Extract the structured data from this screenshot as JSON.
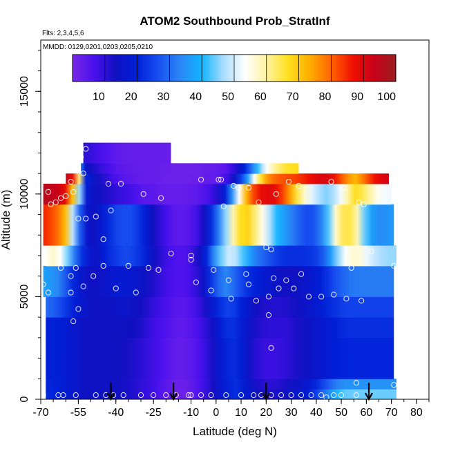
{
  "chart_data": {
    "type": "heatmap",
    "title": "ATOM2 Southbound Prob_StratInf",
    "flights_label": "Flts: 2,3,4,5,6",
    "dates_label": "MMDD: 0129,0201,0203,0205,0210",
    "xlabel": "Latitude (deg N)",
    "ylabel": "Altitude (m)",
    "xlim": [
      -70,
      85
    ],
    "ylim": [
      0,
      17500
    ],
    "x_ticks": [
      "-70",
      "-55",
      "-40",
      "-25",
      "-10",
      "0",
      "10",
      "20",
      "30",
      "40",
      "50",
      "60",
      "70",
      "80"
    ],
    "x_tick_values": [
      -70,
      -55,
      -40,
      -25,
      -10,
      0,
      10,
      20,
      30,
      40,
      50,
      60,
      70,
      80
    ],
    "x_minor_step": 5,
    "y_ticks": [
      "0",
      "5000",
      "10000",
      "15000"
    ],
    "y_tick_values": [
      0,
      5000,
      10000,
      15000
    ],
    "y_minor_step": 1000,
    "colorbar": {
      "ticks": [
        "10",
        "20",
        "30",
        "40",
        "50",
        "60",
        "70",
        "80",
        "90",
        "100"
      ],
      "tick_values": [
        10,
        20,
        30,
        40,
        50,
        60,
        70,
        80,
        90,
        100
      ],
      "range": [
        0,
        100
      ],
      "colors": [
        "#7a28e6",
        "#4a10ee",
        "#1010c0",
        "#0020d8",
        "#1850f0",
        "#2a86f4",
        "#10b4ff",
        "#a8dcff",
        "#ffffff",
        "#fff2a0",
        "#ffe020",
        "#ffae00",
        "#ff6400",
        "#f01000",
        "#c8001a",
        "#9a1e1e"
      ]
    },
    "arrow_latitudes": [
      -42,
      -17,
      20,
      61
    ],
    "curtain": {
      "bands": [
        {
          "y0": 0,
          "y1": 500,
          "x0": -68,
          "x1": 72
        },
        {
          "y0": 500,
          "y1": 1000,
          "x0": -68,
          "x1": 72
        },
        {
          "y0": 1000,
          "y1": 3000,
          "x0": -68,
          "x1": 71
        },
        {
          "y0": 3000,
          "y1": 4000,
          "x0": -68,
          "x1": 71
        },
        {
          "y0": 4000,
          "y1": 5000,
          "x0": -68,
          "x1": 71
        },
        {
          "y0": 5000,
          "y1": 6500,
          "x0": -69,
          "x1": 71
        },
        {
          "y0": 6500,
          "y1": 7500,
          "x0": -68,
          "x1": 72
        },
        {
          "y0": 7500,
          "y1": 9500,
          "x0": -69,
          "x1": 71
        },
        {
          "y0": 9500,
          "y1": 10500,
          "x0": -69,
          "x1": 70
        },
        {
          "y0": 10500,
          "y1": 11000,
          "x0": -60,
          "x1": 69
        },
        {
          "y0": 11000,
          "y1": 11500,
          "x0": -54,
          "x1": 33
        },
        {
          "y0": 11500,
          "y1": 12500,
          "x0": -53,
          "x1": -18
        }
      ],
      "profile_lat": [
        -70,
        -64,
        -60,
        -56,
        -52,
        -48,
        -44,
        -40,
        -35,
        -30,
        -25,
        -20,
        -16,
        -12,
        -8,
        -4,
        0,
        4,
        8,
        12,
        16,
        20,
        24,
        28,
        32,
        36,
        40,
        44,
        48,
        52,
        56,
        60,
        64,
        68,
        72
      ],
      "profiles": [
        {
          "alt": 11700,
          "values": [
            10,
            10,
            20,
            14,
            10,
            8,
            6,
            4,
            3,
            3,
            3,
            3,
            2,
            2,
            2,
            3,
            3,
            4,
            8,
            14,
            22,
            32,
            42,
            50,
            50,
            50,
            50,
            50,
            50,
            50,
            50,
            50,
            50,
            50,
            50
          ]
        },
        {
          "alt": 10800,
          "values": [
            99,
            98,
            95,
            85,
            20,
            14,
            10,
            6,
            4,
            3,
            3,
            2,
            2,
            2,
            2,
            3,
            3,
            6,
            14,
            30,
            56,
            74,
            80,
            82,
            84,
            88,
            92,
            94,
            88,
            78,
            72,
            82,
            90,
            94,
            95
          ]
        },
        {
          "alt": 10000,
          "values": [
            96,
            94,
            88,
            62,
            18,
            14,
            12,
            10,
            8,
            5,
            4,
            3,
            3,
            3,
            4,
            6,
            10,
            20,
            45,
            72,
            86,
            90,
            88,
            80,
            66,
            55,
            48,
            45,
            48,
            58,
            68,
            62,
            55,
            52,
            52
          ]
        },
        {
          "alt": 9000,
          "values": [
            92,
            88,
            80,
            42,
            16,
            14,
            18,
            22,
            24,
            18,
            10,
            6,
            4,
            4,
            6,
            12,
            22,
            40,
            62,
            78,
            72,
            62,
            52,
            45,
            38,
            32,
            30,
            42,
            62,
            72,
            65,
            45,
            38,
            40,
            42
          ]
        },
        {
          "alt": 8000,
          "values": [
            80,
            74,
            62,
            32,
            16,
            14,
            22,
            28,
            30,
            26,
            16,
            8,
            4,
            4,
            8,
            18,
            34,
            52,
            66,
            62,
            50,
            40,
            30,
            26,
            22,
            20,
            24,
            36,
            54,
            62,
            56,
            36,
            30,
            30,
            32
          ]
        },
        {
          "alt": 7000,
          "values": [
            52,
            58,
            48,
            30,
            18,
            14,
            20,
            24,
            26,
            22,
            14,
            8,
            6,
            6,
            10,
            20,
            38,
            50,
            48,
            40,
            32,
            28,
            24,
            22,
            22,
            22,
            24,
            30,
            44,
            54,
            58,
            52,
            48,
            46,
            46
          ]
        },
        {
          "alt": 6000,
          "values": [
            38,
            36,
            28,
            18,
            14,
            14,
            16,
            18,
            18,
            16,
            12,
            8,
            6,
            6,
            10,
            18,
            30,
            36,
            30,
            24,
            22,
            18,
            16,
            14,
            14,
            16,
            18,
            22,
            28,
            32,
            34,
            34,
            34,
            34,
            34
          ]
        },
        {
          "alt": 5000,
          "values": [
            36,
            32,
            26,
            20,
            16,
            14,
            14,
            16,
            16,
            14,
            10,
            7,
            5,
            5,
            8,
            14,
            22,
            26,
            24,
            18,
            14,
            12,
            12,
            12,
            14,
            16,
            18,
            22,
            24,
            26,
            26,
            26,
            26,
            26,
            26
          ]
        },
        {
          "alt": 3500,
          "values": [
            20,
            20,
            18,
            16,
            14,
            14,
            14,
            14,
            14,
            12,
            8,
            6,
            4,
            4,
            6,
            10,
            16,
            22,
            22,
            16,
            12,
            10,
            10,
            10,
            12,
            14,
            16,
            18,
            20,
            22,
            22,
            22,
            22,
            22,
            22
          ]
        },
        {
          "alt": 1500,
          "values": [
            20,
            20,
            18,
            16,
            14,
            14,
            14,
            14,
            12,
            10,
            8,
            5,
            3,
            3,
            5,
            9,
            14,
            20,
            22,
            16,
            10,
            8,
            8,
            10,
            12,
            14,
            16,
            18,
            20,
            20,
            20,
            20,
            20,
            20,
            20
          ]
        },
        {
          "alt": 300,
          "values": [
            22,
            20,
            18,
            16,
            14,
            14,
            14,
            14,
            12,
            10,
            8,
            4,
            2,
            2,
            5,
            9,
            14,
            20,
            22,
            18,
            14,
            12,
            12,
            14,
            16,
            18,
            24,
            32,
            40,
            44,
            44,
            44,
            44,
            44,
            44
          ]
        }
      ]
    },
    "sample_points": [
      {
        "lat": -52,
        "alt": 12200
      },
      {
        "lat": -54,
        "alt": 11800
      },
      {
        "lat": -53,
        "alt": 11000
      },
      {
        "lat": -58,
        "alt": 10600
      },
      {
        "lat": -67,
        "alt": 10100
      },
      {
        "lat": -62,
        "alt": 9800
      },
      {
        "lat": -64,
        "alt": 9600
      },
      {
        "lat": -66,
        "alt": 9500
      },
      {
        "lat": -60,
        "alt": 9900
      },
      {
        "lat": -57,
        "alt": 10100
      },
      {
        "lat": -43,
        "alt": 10500
      },
      {
        "lat": -38,
        "alt": 10500
      },
      {
        "lat": -42,
        "alt": 9200
      },
      {
        "lat": -55,
        "alt": 8800
      },
      {
        "lat": -52,
        "alt": 8800
      },
      {
        "lat": -48,
        "alt": 8900
      },
      {
        "lat": -45,
        "alt": 7800
      },
      {
        "lat": -29,
        "alt": 10000
      },
      {
        "lat": -22,
        "alt": 9800
      },
      {
        "lat": -14,
        "alt": 11700
      },
      {
        "lat": -12,
        "alt": 11900
      },
      {
        "lat": -10,
        "alt": 12000
      },
      {
        "lat": -11,
        "alt": 12000
      },
      {
        "lat": -6,
        "alt": 10700
      },
      {
        "lat": 1,
        "alt": 10700
      },
      {
        "lat": 2,
        "alt": 10700
      },
      {
        "lat": 7,
        "alt": 10400
      },
      {
        "lat": 9,
        "alt": 10300
      },
      {
        "lat": 13,
        "alt": 10300
      },
      {
        "lat": 17,
        "alt": 9600
      },
      {
        "lat": 24,
        "alt": 10000
      },
      {
        "lat": 29,
        "alt": 10600
      },
      {
        "lat": 33,
        "alt": 10400
      },
      {
        "lat": 46,
        "alt": 10600
      },
      {
        "lat": 51,
        "alt": 10300
      },
      {
        "lat": 57,
        "alt": 9600
      },
      {
        "lat": 59,
        "alt": 9500
      },
      {
        "lat": 65,
        "alt": 11300
      },
      {
        "lat": 68,
        "alt": 11200
      },
      {
        "lat": 3,
        "alt": 9400
      },
      {
        "lat": -18,
        "alt": 7100
      },
      {
        "lat": -45,
        "alt": 6500
      },
      {
        "lat": -35,
        "alt": 6500
      },
      {
        "lat": -27,
        "alt": 6400
      },
      {
        "lat": -23,
        "alt": 6300
      },
      {
        "lat": -10,
        "alt": 6800
      },
      {
        "lat": -10,
        "alt": 7000
      },
      {
        "lat": -1,
        "alt": 6300
      },
      {
        "lat": -69,
        "alt": 5600
      },
      {
        "lat": -67,
        "alt": 5200
      },
      {
        "lat": -62,
        "alt": 6400
      },
      {
        "lat": -58,
        "alt": 6000
      },
      {
        "lat": -56,
        "alt": 6400
      },
      {
        "lat": -53,
        "alt": 5500
      },
      {
        "lat": -49,
        "alt": 6000
      },
      {
        "lat": -58,
        "alt": 5200
      },
      {
        "lat": -55,
        "alt": 4400
      },
      {
        "lat": -57,
        "alt": 3800
      },
      {
        "lat": -40,
        "alt": 5400
      },
      {
        "lat": -32,
        "alt": 5200
      },
      {
        "lat": -8,
        "alt": 5700
      },
      {
        "lat": -2,
        "alt": 5300
      },
      {
        "lat": 5,
        "alt": 5800
      },
      {
        "lat": 6,
        "alt": 4900
      },
      {
        "lat": 12,
        "alt": 6100
      },
      {
        "lat": 13,
        "alt": 5600
      },
      {
        "lat": 16,
        "alt": 4800
      },
      {
        "lat": 21,
        "alt": 5000
      },
      {
        "lat": 21,
        "alt": 4100
      },
      {
        "lat": 23,
        "alt": 5900
      },
      {
        "lat": 25,
        "alt": 5400
      },
      {
        "lat": 28,
        "alt": 5800
      },
      {
        "lat": 31,
        "alt": 5400
      },
      {
        "lat": 34,
        "alt": 6100
      },
      {
        "lat": 37,
        "alt": 5000
      },
      {
        "lat": 42,
        "alt": 5000
      },
      {
        "lat": 47,
        "alt": 5100
      },
      {
        "lat": 52,
        "alt": 4900
      },
      {
        "lat": 54,
        "alt": 6400
      },
      {
        "lat": 58,
        "alt": 4800
      },
      {
        "lat": 62,
        "alt": 7200
      },
      {
        "lat": 71,
        "alt": 6500
      },
      {
        "lat": 22,
        "alt": 7300
      },
      {
        "lat": 20,
        "alt": 7400
      },
      {
        "lat": 22,
        "alt": 2500
      },
      {
        "lat": 71,
        "alt": 700
      },
      {
        "lat": 56,
        "alt": 800
      },
      {
        "lat": -69,
        "alt": 200
      },
      {
        "lat": -63,
        "alt": 200
      },
      {
        "lat": -61,
        "alt": 200
      },
      {
        "lat": -56,
        "alt": 200
      },
      {
        "lat": -48,
        "alt": 200
      },
      {
        "lat": -44,
        "alt": 200
      },
      {
        "lat": -41,
        "alt": 200
      },
      {
        "lat": -37,
        "alt": 200
      },
      {
        "lat": -30,
        "alt": 200
      },
      {
        "lat": -25,
        "alt": 200
      },
      {
        "lat": -20,
        "alt": 200
      },
      {
        "lat": -16,
        "alt": 200
      },
      {
        "lat": -11,
        "alt": 200
      },
      {
        "lat": -10,
        "alt": 200
      },
      {
        "lat": -6,
        "alt": 200
      },
      {
        "lat": -2,
        "alt": 200
      },
      {
        "lat": 4,
        "alt": 200
      },
      {
        "lat": 10,
        "alt": 200
      },
      {
        "lat": 15,
        "alt": 200
      },
      {
        "lat": 18,
        "alt": 200
      },
      {
        "lat": 22,
        "alt": 200
      },
      {
        "lat": 26,
        "alt": 200
      },
      {
        "lat": 30,
        "alt": 200
      },
      {
        "lat": 34,
        "alt": 200
      },
      {
        "lat": 38,
        "alt": 200
      },
      {
        "lat": 42,
        "alt": 200
      },
      {
        "lat": 44,
        "alt": 100
      },
      {
        "lat": 47,
        "alt": 200
      },
      {
        "lat": 50,
        "alt": 200
      },
      {
        "lat": 56,
        "alt": 200
      }
    ]
  }
}
